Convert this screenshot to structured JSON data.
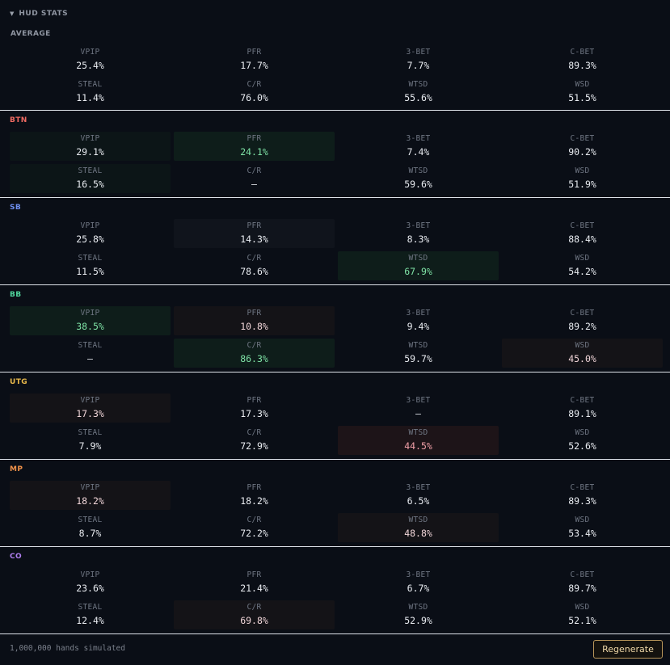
{
  "panel": {
    "chevron": "▼",
    "title": "HUD STATS"
  },
  "colors": {
    "BTN": "#f06a62",
    "SB": "#6e8ff0",
    "BB": "#4fd39b",
    "UTG": "#e8b84a",
    "MP": "#f0924a",
    "CO": "#b07ff0",
    "highlight_good": "#7fe3a6",
    "highlight_bad": "#f2a0a8"
  },
  "sections": [
    {
      "id": "average",
      "title": "AVERAGE",
      "stats": [
        {
          "label": "VPIP",
          "value": "25.4%",
          "tone": ""
        },
        {
          "label": "PFR",
          "value": "17.7%",
          "tone": ""
        },
        {
          "label": "3-BET",
          "value": "7.7%",
          "tone": ""
        },
        {
          "label": "C-BET",
          "value": "89.3%",
          "tone": ""
        },
        {
          "label": "STEAL",
          "value": "11.4%",
          "tone": ""
        },
        {
          "label": "C/R",
          "value": "76.0%",
          "tone": ""
        },
        {
          "label": "WTSD",
          "value": "55.6%",
          "tone": ""
        },
        {
          "label": "WSD",
          "value": "51.5%",
          "tone": ""
        }
      ]
    },
    {
      "id": "btn",
      "title": "BTN",
      "stats": [
        {
          "label": "VPIP",
          "value": "29.1%",
          "tone": "gs"
        },
        {
          "label": "PFR",
          "value": "24.1%",
          "tone": "g"
        },
        {
          "label": "3-BET",
          "value": "7.4%",
          "tone": ""
        },
        {
          "label": "C-BET",
          "value": "90.2%",
          "tone": ""
        },
        {
          "label": "STEAL",
          "value": "16.5%",
          "tone": "gs"
        },
        {
          "label": "C/R",
          "value": "—",
          "tone": ""
        },
        {
          "label": "WTSD",
          "value": "59.6%",
          "tone": ""
        },
        {
          "label": "WSD",
          "value": "51.9%",
          "tone": ""
        }
      ]
    },
    {
      "id": "sb",
      "title": "SB",
      "stats": [
        {
          "label": "VPIP",
          "value": "25.8%",
          "tone": ""
        },
        {
          "label": "PFR",
          "value": "14.3%",
          "tone": "n"
        },
        {
          "label": "3-BET",
          "value": "8.3%",
          "tone": ""
        },
        {
          "label": "C-BET",
          "value": "88.4%",
          "tone": ""
        },
        {
          "label": "STEAL",
          "value": "11.5%",
          "tone": ""
        },
        {
          "label": "C/R",
          "value": "78.6%",
          "tone": ""
        },
        {
          "label": "WTSD",
          "value": "67.9%",
          "tone": "g"
        },
        {
          "label": "WSD",
          "value": "54.2%",
          "tone": ""
        }
      ]
    },
    {
      "id": "bb",
      "title": "BB",
      "stats": [
        {
          "label": "VPIP",
          "value": "38.5%",
          "tone": "g"
        },
        {
          "label": "PFR",
          "value": "10.8%",
          "tone": "rs"
        },
        {
          "label": "3-BET",
          "value": "9.4%",
          "tone": ""
        },
        {
          "label": "C-BET",
          "value": "89.2%",
          "tone": ""
        },
        {
          "label": "STEAL",
          "value": "—",
          "tone": ""
        },
        {
          "label": "C/R",
          "value": "86.3%",
          "tone": "g"
        },
        {
          "label": "WTSD",
          "value": "59.7%",
          "tone": ""
        },
        {
          "label": "WSD",
          "value": "45.0%",
          "tone": "rs"
        }
      ]
    },
    {
      "id": "utg",
      "title": "UTG",
      "stats": [
        {
          "label": "VPIP",
          "value": "17.3%",
          "tone": "rs"
        },
        {
          "label": "PFR",
          "value": "17.3%",
          "tone": ""
        },
        {
          "label": "3-BET",
          "value": "—",
          "tone": ""
        },
        {
          "label": "C-BET",
          "value": "89.1%",
          "tone": ""
        },
        {
          "label": "STEAL",
          "value": "7.9%",
          "tone": ""
        },
        {
          "label": "C/R",
          "value": "72.9%",
          "tone": ""
        },
        {
          "label": "WTSD",
          "value": "44.5%",
          "tone": "r"
        },
        {
          "label": "WSD",
          "value": "52.6%",
          "tone": ""
        }
      ]
    },
    {
      "id": "mp",
      "title": "MP",
      "stats": [
        {
          "label": "VPIP",
          "value": "18.2%",
          "tone": "rs"
        },
        {
          "label": "PFR",
          "value": "18.2%",
          "tone": ""
        },
        {
          "label": "3-BET",
          "value": "6.5%",
          "tone": ""
        },
        {
          "label": "C-BET",
          "value": "89.3%",
          "tone": ""
        },
        {
          "label": "STEAL",
          "value": "8.7%",
          "tone": ""
        },
        {
          "label": "C/R",
          "value": "72.2%",
          "tone": ""
        },
        {
          "label": "WTSD",
          "value": "48.8%",
          "tone": "rs"
        },
        {
          "label": "WSD",
          "value": "53.4%",
          "tone": ""
        }
      ]
    },
    {
      "id": "co",
      "title": "CO",
      "stats": [
        {
          "label": "VPIP",
          "value": "23.6%",
          "tone": ""
        },
        {
          "label": "PFR",
          "value": "21.4%",
          "tone": ""
        },
        {
          "label": "3-BET",
          "value": "6.7%",
          "tone": ""
        },
        {
          "label": "C-BET",
          "value": "89.7%",
          "tone": ""
        },
        {
          "label": "STEAL",
          "value": "12.4%",
          "tone": ""
        },
        {
          "label": "C/R",
          "value": "69.8%",
          "tone": "rs"
        },
        {
          "label": "WTSD",
          "value": "52.9%",
          "tone": ""
        },
        {
          "label": "WSD",
          "value": "52.1%",
          "tone": ""
        }
      ]
    }
  ],
  "footer": {
    "hands_text": "1,000,000 hands simulated",
    "regenerate_label": "Regenerate"
  }
}
